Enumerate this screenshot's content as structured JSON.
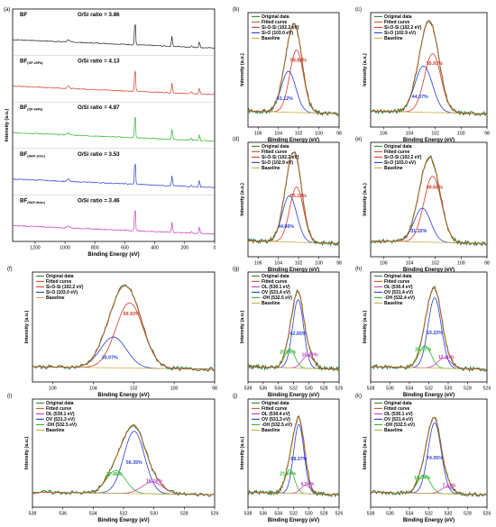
{
  "figure_title": "",
  "chart_data": [
    {
      "panel": "(a)",
      "type": "line",
      "subtype": "stacked XPS survey spectra",
      "xlabel": "Binding Energy (eV)",
      "ylabel": "Intensity (a.u.)",
      "xlim": [
        1350,
        0
      ],
      "xticks": [
        1200,
        1000,
        800,
        600,
        400,
        200,
        0
      ],
      "x_reversed": true,
      "series": [
        {
          "name": "BF",
          "subscript": "",
          "ratio_text": "O/Si ratio = 3.86",
          "color": "#222222"
        },
        {
          "name": "BF",
          "subscript": "(OP-20Pa)",
          "ratio_text": "O/Si ratio = 4.13",
          "color": "#d23b2a"
        },
        {
          "name": "BF",
          "subscript": "(OP-60Pa)",
          "ratio_text": "O/Si ratio = 4.87",
          "color": "#2db52d"
        },
        {
          "name": "BF",
          "subscript": "(HAP-1min)",
          "ratio_text": "O/Si ratio = 3.53",
          "color": "#2a3fd6"
        },
        {
          "name": "BF",
          "subscript": "(HAP-5min)",
          "ratio_text": "O/Si ratio = 3.46",
          "color": "#c23bc2"
        }
      ],
      "peaks_eV": [
        532,
        285,
        102
      ]
    },
    {
      "panel": "(b)",
      "type": "line",
      "subtype": "Si 2p",
      "xlabel": "Binding Energy (eV)",
      "ylabel": "Intensity (a.u.)",
      "xlim": [
        107,
        98
      ],
      "xticks": [
        106,
        104,
        102,
        100,
        98
      ],
      "legend": [
        "Original data",
        "Fitted curve",
        "Si-O-Si (102.2 eV)",
        "Si-O (103.0 eV)",
        "Baseline"
      ],
      "components": [
        {
          "name": "Si-O-Si (102.2 eV)",
          "center": 102.2,
          "fwhm": 1.6,
          "height": 0.7,
          "color": "#d23b2a",
          "label": "58.88%"
        },
        {
          "name": "Si-O (103.0 eV)",
          "center": 103.0,
          "fwhm": 1.7,
          "height": 0.46,
          "color": "#2a3fd6",
          "label": "41.12%"
        }
      ]
    },
    {
      "panel": "(c)",
      "type": "line",
      "subtype": "Si 2p",
      "xlabel": "Binding Energy (eV)",
      "ylabel": "Intensity (a.u.)",
      "xlim": [
        107,
        98
      ],
      "xticks": [
        106,
        104,
        102,
        100,
        98
      ],
      "legend": [
        "Original data",
        "Fitted curve",
        "Si-O-Si (102.2 eV)",
        "Si-O (102.9 eV)",
        "Baseline"
      ],
      "components": [
        {
          "name": "Si-O-Si (102.2 eV)",
          "center": 102.2,
          "fwhm": 1.5,
          "height": 0.66,
          "color": "#d23b2a",
          "label": "55.93%"
        },
        {
          "name": "Si-O (102.9 eV)",
          "center": 102.9,
          "fwhm": 1.6,
          "height": 0.52,
          "color": "#2a3fd6",
          "label": "44.07%"
        }
      ]
    },
    {
      "panel": "(d)",
      "type": "line",
      "subtype": "Si 2p",
      "xlabel": "Binding Energy (eV)",
      "ylabel": "Intensity (a.u.)",
      "xlim": [
        107,
        98
      ],
      "xticks": [
        106,
        104,
        102,
        100,
        98
      ],
      "legend": [
        "Original data",
        "Fitted curve",
        "Si-O-Si (102.2 eV)",
        "Si-O (102.9 eV)",
        "Baseline"
      ],
      "components": [
        {
          "name": "Si-O-Si (102.2 eV)",
          "center": 102.2,
          "fwhm": 1.6,
          "height": 0.62,
          "color": "#d23b2a",
          "label": "55.14%"
        },
        {
          "name": "Si-O (102.9 eV)",
          "center": 102.9,
          "fwhm": 1.7,
          "height": 0.52,
          "color": "#2a3fd6",
          "label": "44.86%"
        }
      ]
    },
    {
      "panel": "(e)",
      "type": "line",
      "subtype": "Si 2p",
      "xlabel": "Binding Energy (eV)",
      "ylabel": "Intensity (a.u.)",
      "xlim": [
        107,
        98
      ],
      "xticks": [
        106,
        104,
        102,
        100,
        98
      ],
      "legend": [
        "Original data",
        "Fitted curve",
        "Si-O-Si (102.2 eV)",
        "Si-O (103.0 eV)",
        "Baseline"
      ],
      "components": [
        {
          "name": "Si-O-Si (102.2 eV)",
          "center": 102.2,
          "fwhm": 1.6,
          "height": 0.74,
          "color": "#d23b2a",
          "label": "68.68%"
        },
        {
          "name": "Si-O (103.0 eV)",
          "center": 103.0,
          "fwhm": 1.5,
          "height": 0.38,
          "color": "#2a3fd6",
          "label": "31.32%"
        }
      ]
    },
    {
      "panel": "(f)",
      "type": "line",
      "subtype": "Si 2p",
      "xlabel": "Binding Energy (eV)",
      "ylabel": "Intensity (a.u.)",
      "xlim": [
        107,
        98
      ],
      "xticks": [
        106,
        104,
        102,
        100,
        98
      ],
      "legend": [
        "Original data",
        "Fitted curve",
        "Si-O-Si (102.2 eV)",
        "Si-O (103.0 eV)",
        "Baseline"
      ],
      "components": [
        {
          "name": "Si-O-Si (102.2 eV)",
          "center": 102.2,
          "fwhm": 1.6,
          "height": 0.76,
          "color": "#d23b2a",
          "label": "69.93%"
        },
        {
          "name": "Si-O (103.0 eV)",
          "center": 103.0,
          "fwhm": 1.5,
          "height": 0.36,
          "color": "#2a3fd6",
          "label": "30.07%"
        }
      ]
    },
    {
      "panel": "(g)",
      "type": "line",
      "subtype": "O 1s",
      "xlabel": "Binding Energy (eV)",
      "ylabel": "Intensity (a.u.)",
      "xlim": [
        538,
        526
      ],
      "xticks": [
        538,
        536,
        534,
        532,
        530,
        528,
        526
      ],
      "legend": [
        "Original data",
        "Fitted curve",
        "OL (530.1 eV)",
        "OV (531.4 eV)",
        "-OH (532.5 eV)",
        "Baseline"
      ],
      "components": [
        {
          "name": "OV (531.4 eV)",
          "center": 531.4,
          "fwhm": 1.7,
          "height": 0.8,
          "color": "#2a3fd6",
          "label": "62.65%"
        },
        {
          "name": "-OH (532.5 eV)",
          "center": 532.5,
          "fwhm": 1.6,
          "height": 0.22,
          "color": "#2db52d",
          "label": "20.86%"
        },
        {
          "name": "OL (530.1 eV)",
          "center": 530.1,
          "fwhm": 1.8,
          "height": 0.15,
          "color": "#c23bc2",
          "label": "16.49%"
        }
      ]
    },
    {
      "panel": "(h)",
      "type": "line",
      "subtype": "O 1s",
      "xlabel": "Binding Energy (eV)",
      "ylabel": "Intensity (a.u.)",
      "xlim": [
        538,
        526
      ],
      "xticks": [
        538,
        536,
        534,
        532,
        530,
        528,
        526
      ],
      "legend": [
        "Original data",
        "Fitted curve",
        "OL (530.4 eV)",
        "OV (531.4 eV)",
        "-OH (532.4 eV)",
        "Baseline"
      ],
      "components": [
        {
          "name": "OV (531.4 eV)",
          "center": 531.4,
          "fwhm": 1.6,
          "height": 0.82,
          "color": "#2a3fd6",
          "label": "63.22%"
        },
        {
          "name": "-OH (532.4 eV)",
          "center": 532.4,
          "fwhm": 1.5,
          "height": 0.26,
          "color": "#2db52d",
          "label": "24.37%"
        },
        {
          "name": "OL (530.4 eV)",
          "center": 530.4,
          "fwhm": 1.6,
          "height": 0.12,
          "color": "#c23bc2",
          "label": "12.40%"
        }
      ]
    },
    {
      "panel": "(i)",
      "type": "line",
      "subtype": "O 1s",
      "xlabel": "Binding Energy (eV)",
      "ylabel": "Intensity (a.u.)",
      "xlim": [
        538,
        526
      ],
      "xticks": [
        538,
        536,
        534,
        532,
        530,
        528,
        526
      ],
      "legend": [
        "Original data",
        "Fitted curve",
        "OL (530.1 eV)",
        "OV (531.3 eV)",
        "-OH (532.5 eV)",
        "Baseline"
      ],
      "components": [
        {
          "name": "OV (531.3 eV)",
          "center": 531.3,
          "fwhm": 1.6,
          "height": 0.74,
          "color": "#2a3fd6",
          "label": "56.35%"
        },
        {
          "name": "-OH (532.5 eV)",
          "center": 532.5,
          "fwhm": 1.5,
          "height": 0.27,
          "color": "#2db52d",
          "label": "27.49%"
        },
        {
          "name": "OL (530.1 eV)",
          "center": 530.1,
          "fwhm": 1.6,
          "height": 0.14,
          "color": "#c23bc2",
          "label": "16.16%"
        }
      ]
    },
    {
      "panel": "(j)",
      "type": "line",
      "subtype": "O 1s",
      "xlabel": "Binding Energy (eV)",
      "ylabel": "Intensity (a.u.)",
      "xlim": [
        538,
        526
      ],
      "xticks": [
        538,
        536,
        534,
        532,
        530,
        528,
        526
      ],
      "legend": [
        "Original data",
        "Fitted curve",
        "OL (530.4 eV)",
        "OV (531.3 eV)",
        "-OH (532.5 eV)",
        "Baseline"
      ],
      "components": [
        {
          "name": "OV (531.3 eV)",
          "center": 531.3,
          "fwhm": 1.6,
          "height": 0.82,
          "color": "#2a3fd6",
          "label": "68.37%"
        },
        {
          "name": "-OH (532.5 eV)",
          "center": 532.5,
          "fwhm": 1.5,
          "height": 0.28,
          "color": "#2db52d",
          "label": "21.69%"
        },
        {
          "name": "OL (530.4 eV)",
          "center": 530.4,
          "fwhm": 1.5,
          "height": 0.1,
          "color": "#c23bc2",
          "label": "9.94%"
        }
      ]
    },
    {
      "panel": "(k)",
      "type": "line",
      "subtype": "O 1s",
      "xlabel": "Binding Energy (eV)",
      "ylabel": "Intensity (a.u.)",
      "xlim": [
        538,
        526
      ],
      "xticks": [
        538,
        536,
        534,
        532,
        530,
        528,
        526
      ],
      "legend": [
        "Original data",
        "Fitted curve",
        "OL (530.1 eV)",
        "OV (531.4 eV)",
        "-OH (532.5 eV)",
        "Baseline"
      ],
      "components": [
        {
          "name": "OV (531.4 eV)",
          "center": 531.4,
          "fwhm": 1.6,
          "height": 0.84,
          "color": "#2a3fd6",
          "label": "74.05%"
        },
        {
          "name": "-OH (532.5 eV)",
          "center": 532.5,
          "fwhm": 1.5,
          "height": 0.22,
          "color": "#2db52d",
          "label": "18.54%"
        },
        {
          "name": "OL (530.1 eV)",
          "center": 530.1,
          "fwhm": 1.5,
          "height": 0.08,
          "color": "#c23bc2",
          "label": "7.41%"
        }
      ]
    }
  ],
  "colors": {
    "original_data": "#3a7d3a",
    "fitted_curve": "#c75a2a",
    "baseline": "#c8b04a",
    "si_o_si": "#d23b2a",
    "si_o": "#2a3fd6",
    "ol": "#c23bc2",
    "ov": "#2a3fd6",
    "oh": "#2db52d"
  }
}
